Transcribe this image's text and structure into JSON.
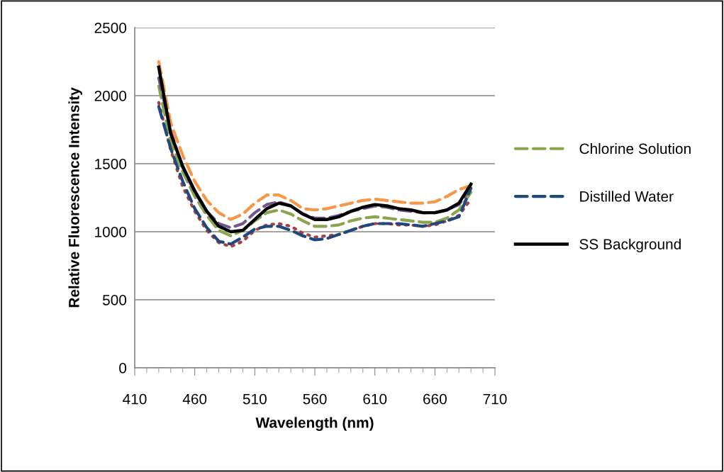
{
  "chart_data": {
    "type": "line",
    "xlabel": "Wavelength (nm)",
    "ylabel": "Relative Fluorescence Intensity",
    "x": [
      430,
      440,
      450,
      460,
      470,
      480,
      490,
      500,
      510,
      520,
      530,
      540,
      550,
      560,
      570,
      580,
      590,
      600,
      610,
      620,
      630,
      640,
      650,
      660,
      670,
      680,
      690
    ],
    "series": [
      {
        "color": "#a5423f",
        "line_style": "dotted",
        "values": [
          1950,
          1600,
          1330,
          1150,
          1010,
          920,
          890,
          930,
          1010,
          1050,
          1060,
          1040,
          990,
          960,
          970,
          980,
          1010,
          1040,
          1060,
          1060,
          1050,
          1050,
          1040,
          1050,
          1080,
          1120,
          1240
        ]
      },
      {
        "name": "Chlorine Solution",
        "color": "#89a54e",
        "line_style": "dashed",
        "values": [
          2070,
          1660,
          1440,
          1260,
          1120,
          1010,
          970,
          1010,
          1080,
          1140,
          1160,
          1130,
          1080,
          1040,
          1040,
          1050,
          1080,
          1100,
          1110,
          1100,
          1090,
          1080,
          1070,
          1070,
          1100,
          1160,
          1290
        ]
      },
      {
        "color": "#71588f",
        "line_style": "dashed",
        "values": [
          2130,
          1740,
          1470,
          1290,
          1150,
          1060,
          1030,
          1060,
          1140,
          1200,
          1220,
          1190,
          1130,
          1100,
          1100,
          1120,
          1150,
          1170,
          1190,
          1180,
          1160,
          1150,
          1140,
          1140,
          1160,
          1200,
          1320
        ]
      },
      {
        "color": "#f79646",
        "line_style": "dashed",
        "values": [
          2250,
          1800,
          1560,
          1370,
          1230,
          1140,
          1090,
          1130,
          1210,
          1270,
          1270,
          1230,
          1170,
          1160,
          1170,
          1190,
          1210,
          1230,
          1240,
          1230,
          1220,
          1210,
          1210,
          1220,
          1260,
          1310,
          1340
        ]
      },
      {
        "name": "Distilled Water",
        "color": "#1f497d",
        "line_style": "dashed",
        "values": [
          1920,
          1610,
          1370,
          1170,
          1030,
          930,
          910,
          960,
          1020,
          1040,
          1040,
          1010,
          970,
          940,
          950,
          980,
          1010,
          1040,
          1060,
          1060,
          1060,
          1050,
          1040,
          1060,
          1080,
          1110,
          1320
        ]
      },
      {
        "name": "SS Background",
        "color": "#000000",
        "line_style": "solid",
        "values": [
          2210,
          1720,
          1480,
          1300,
          1150,
          1040,
          1000,
          1010,
          1090,
          1170,
          1210,
          1190,
          1130,
          1090,
          1090,
          1110,
          1150,
          1180,
          1200,
          1190,
          1170,
          1160,
          1140,
          1140,
          1160,
          1210,
          1350
        ]
      }
    ],
    "xlim": [
      410,
      710
    ],
    "xticks": [
      410,
      460,
      510,
      560,
      610,
      660,
      710
    ],
    "ylim": [
      0,
      2500
    ],
    "yticks": [
      0,
      500,
      1000,
      1500,
      2000,
      2500
    ],
    "grid": "y",
    "legend": "right",
    "marker": "none"
  }
}
